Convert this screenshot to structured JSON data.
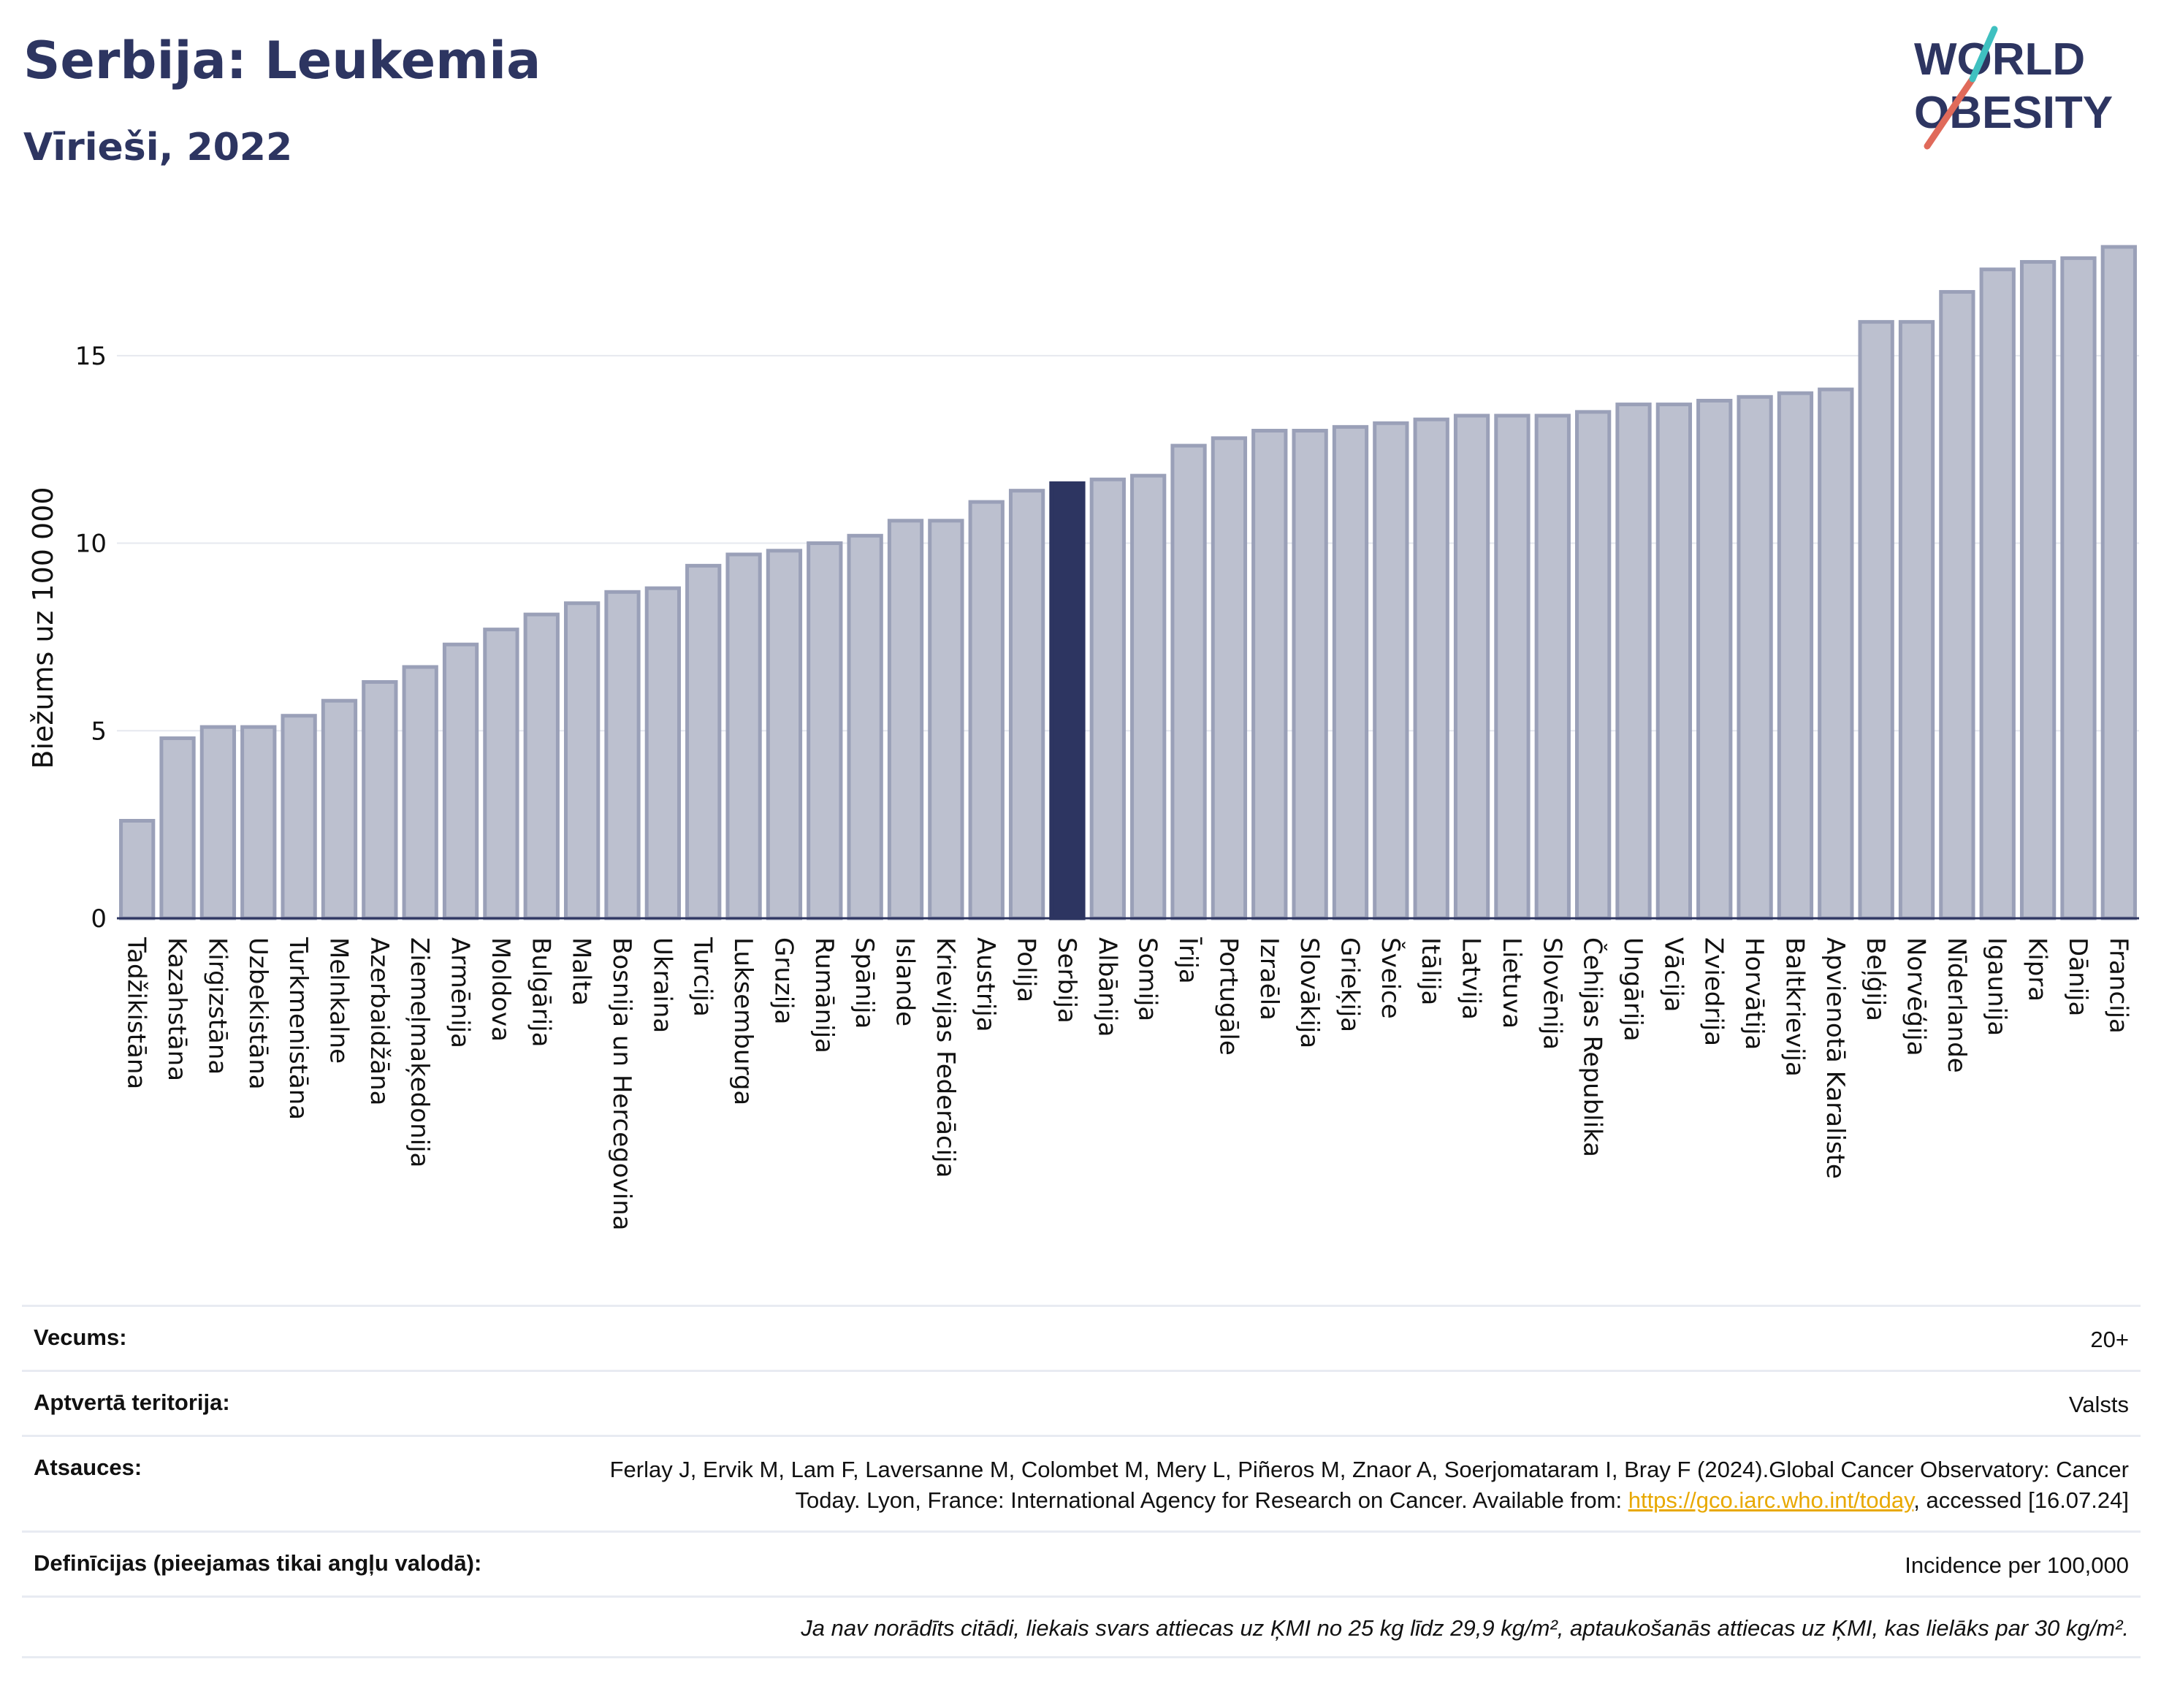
{
  "header": {
    "title": "Serbija: Leukemia",
    "subtitle": "Vīrieši, 2022",
    "logo_text_1": "WORLD",
    "logo_text_2": "OBESITY"
  },
  "chart_data": {
    "type": "bar",
    "ylabel": "Biežums uz 100 000",
    "xlabel": "",
    "ylim": [
      0,
      18.6
    ],
    "yticks": [
      0,
      5,
      10,
      15
    ],
    "grid": true,
    "highlight": "Serbija",
    "colors": {
      "bar": "#bcc0cf",
      "bar_edge": "#9aa0b8",
      "highlight": "#2d3561",
      "grid": "#e6e8ef",
      "axis": "#2d3561"
    },
    "categories": [
      "Tadžikistāna",
      "Kazahstāna",
      "Kirgizstāna",
      "Uzbekistāna",
      "Turkmenistāna",
      "Melnkalne",
      "Azerbaidžāna",
      "Ziemeļmaķedonija",
      "Armēnija",
      "Moldova",
      "Bulgārija",
      "Malta",
      "Bosnija un Hercegovina",
      "Ukraina",
      "Turcija",
      "Luksemburga",
      "Gruzija",
      "Rumānija",
      "Spānija",
      "Islande",
      "Krievijas Federācija",
      "Austrija",
      "Polija",
      "Serbija",
      "Albānija",
      "Somija",
      "Īrija",
      "Portugāle",
      "Izraēla",
      "Slovākija",
      "Grieķija",
      "Šveice",
      "Itālija",
      "Latvija",
      "Lietuva",
      "Slovēnija",
      "Čehijas Republika",
      "Ungārija",
      "Vācija",
      "Zviedrija",
      "Horvātija",
      "Baltkrievija",
      "Apvienotā Karaliste",
      "Beļģija",
      "Norvēģija",
      "Nīderlande",
      "Igaunija",
      "Kipra",
      "Dānija",
      "Francija"
    ],
    "values": [
      2.6,
      4.8,
      5.1,
      5.1,
      5.4,
      5.8,
      6.3,
      6.7,
      7.3,
      7.7,
      8.1,
      8.4,
      8.7,
      8.8,
      9.4,
      9.7,
      9.8,
      10.0,
      10.2,
      10.6,
      10.6,
      11.1,
      11.4,
      11.6,
      11.7,
      11.8,
      12.6,
      12.8,
      13.0,
      13.0,
      13.1,
      13.2,
      13.3,
      13.4,
      13.4,
      13.4,
      13.5,
      13.7,
      13.7,
      13.8,
      13.9,
      14.0,
      14.1,
      15.9,
      15.9,
      16.7,
      17.3,
      17.5,
      17.6,
      17.9
    ]
  },
  "meta": {
    "age_label": "Vecums:",
    "age_value": "20+",
    "territory_label": "Aptvertā teritorija:",
    "territory_value": "Valsts",
    "sources_label": "Atsauces:",
    "sources_text_1": "Ferlay J, Ervik M, Lam F, Laversanne M, Colombet M, Mery L, Piñeros M, Znaor A, Soerjomataram I, Bray F (2024).Global Cancer Observatory: Cancer Today. Lyon, France: International Agency for Research on Cancer. Available from: ",
    "sources_link": "https://gco.iarc.who.int/today",
    "sources_text_2": ", accessed [16.07.24]",
    "definitions_label": "Definīcijas (pieejamas tikai angļu valodā):",
    "definitions_value": "Incidence per 100,000",
    "note": "Ja nav norādīts citādi, liekais svars attiecas uz ĶMI no 25 kg līdz 29,9 kg/m², aptaukošanās attiecas uz ĶMI, kas lielāks par 30 kg/m²."
  }
}
